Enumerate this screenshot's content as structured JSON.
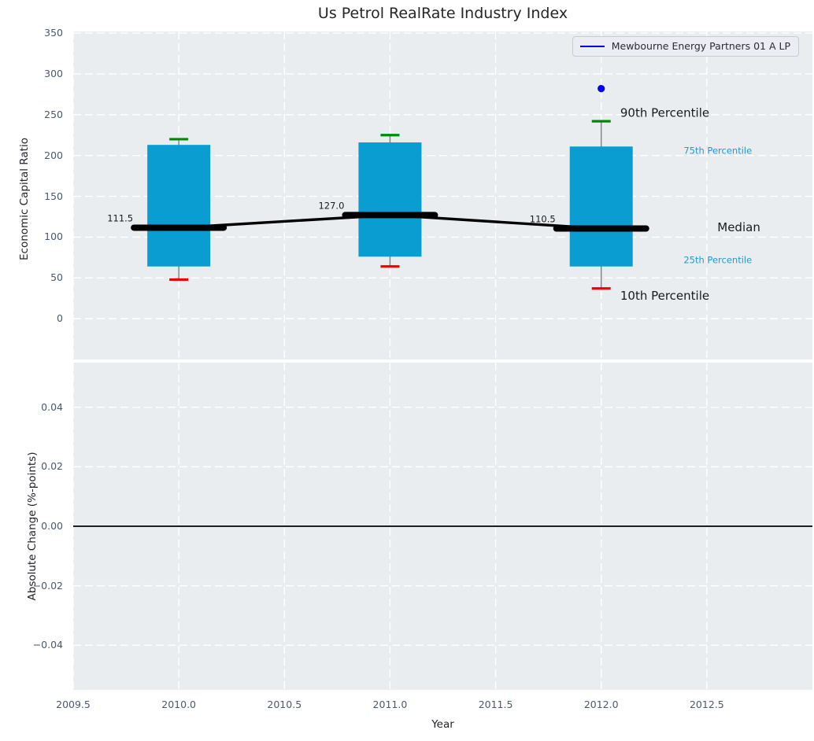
{
  "title": "Us Petrol RealRate Industry Index",
  "legend": {
    "label": "Mewbourne Energy Partners 01 A LP"
  },
  "chart_data": {
    "type": "boxplot-timeseries",
    "title": "Us Petrol RealRate Industry Index",
    "xlabel": "Year",
    "xlim": [
      2009.5,
      2013.0
    ],
    "xticks": [
      2009.5,
      2010.0,
      2010.5,
      2011.0,
      2011.5,
      2012.0,
      2012.5
    ],
    "xtick_labels": [
      "2009.5",
      "2010.0",
      "2010.5",
      "2011.0",
      "2011.5",
      "2012.0",
      "2012.5"
    ],
    "grid": "dashed-white",
    "legend_position": "upper right",
    "top_panel": {
      "ylabel": "Economic Capital Ratio",
      "ylim": [
        -50,
        352
      ],
      "yticks": [
        350,
        300,
        250,
        200,
        150,
        100,
        50,
        0
      ],
      "ytick_labels": [
        "350",
        "300",
        "250",
        "200",
        "150",
        "100",
        "50",
        "0"
      ],
      "boxes": [
        {
          "year": 2010,
          "p90": 220,
          "q3": 213,
          "median": 111.5,
          "q1": 64,
          "p10": 48,
          "median_label": "111.5"
        },
        {
          "year": 2011,
          "p90": 225,
          "q3": 216,
          "median": 127.0,
          "q1": 76,
          "p10": 64,
          "median_label": "127.0"
        },
        {
          "year": 2012,
          "p90": 242,
          "q3": 211,
          "median": 110.5,
          "q1": 64,
          "p10": 37,
          "median_label": "110.5"
        }
      ],
      "median_trend": [
        {
          "year": 2010,
          "value": 111.5
        },
        {
          "year": 2011,
          "value": 127.0
        },
        {
          "year": 2012,
          "value": 110.5
        }
      ],
      "company_points": [
        {
          "name": "Mewbourne Energy Partners 01 A LP",
          "year": 2012,
          "value": 282
        }
      ],
      "annotations": [
        {
          "text": "90th Percentile",
          "x": 2012.09,
          "y": 252,
          "color": "#1a1a1a",
          "size": 15
        },
        {
          "text": "75th Percentile",
          "x": 2012.39,
          "y": 206,
          "color": "#1f9bcd",
          "size": 11.5
        },
        {
          "text": "Median",
          "x": 2012.55,
          "y": 112,
          "color": "#1a1a1a",
          "size": 15
        },
        {
          "text": "25th Percentile",
          "x": 2012.39,
          "y": 72,
          "color": "#1f9bcd",
          "size": 11.5
        },
        {
          "text": "10th Percentile",
          "x": 2012.09,
          "y": 28,
          "color": "#1a1a1a",
          "size": 15
        }
      ]
    },
    "bottom_panel": {
      "ylabel": "Absolute Change (%-points)",
      "ylim": [
        -0.055,
        0.055
      ],
      "yticks": [
        0.04,
        0.02,
        0.0,
        -0.02,
        -0.04
      ],
      "ytick_labels": [
        "0.04",
        "0.02",
        "0.00",
        "−0.02",
        "−0.04"
      ],
      "zero_line": 0.0
    },
    "colors": {
      "axes_bg": "#e9edf0",
      "grid": "#ffffff",
      "box_fill": "#099dd1",
      "whisker": "#808080",
      "cap_top": "#008a00",
      "cap_bottom": "#ef0000",
      "median_line": "#000000",
      "company_point": "#0000ee",
      "tick_label": "#4a5a6e",
      "median_value_label": "#1a1a1a"
    }
  }
}
